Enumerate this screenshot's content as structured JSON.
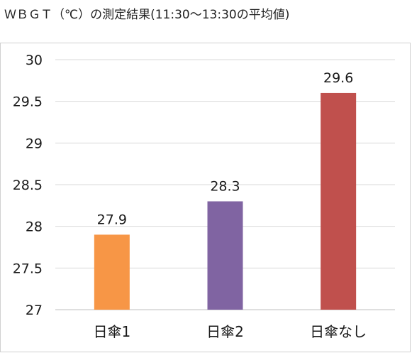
{
  "title": "ＷＢＧＴ（℃）の測定結果(11:30～13:30の平均値)",
  "chart_data": {
    "type": "bar",
    "title": "ＷＢＧＴ（℃）の測定結果(11:30～13:30の平均値)",
    "categories": [
      "日傘1",
      "日傘2",
      "日傘なし"
    ],
    "values": [
      27.9,
      28.3,
      29.6
    ],
    "value_labels": [
      "27.9",
      "28.3",
      "29.6"
    ],
    "bar_colors": [
      "#F79646",
      "#8064A2",
      "#C0504D"
    ],
    "ylim": [
      27,
      30
    ],
    "yticks": [
      27,
      27.5,
      28,
      28.5,
      29,
      29.5,
      30
    ],
    "ytick_labels": [
      "27",
      "27.5",
      "28",
      "28.5",
      "29",
      "29.5",
      "30"
    ],
    "grid": true,
    "legend": "none",
    "xlabel": "",
    "ylabel": ""
  }
}
